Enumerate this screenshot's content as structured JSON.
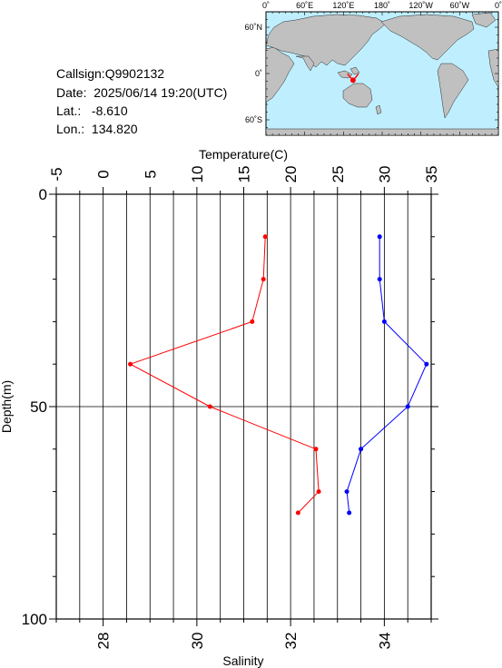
{
  "station": {
    "callsign_label": "Callsign:",
    "callsign": "Q9902132",
    "date_label": "Date:",
    "date": "2025/06/14 19:20(UTC)",
    "lat_label": "Lat.:",
    "lat": "-8.610",
    "lon_label": "Lon.:",
    "lon": "134.820"
  },
  "map": {
    "top_labels": [
      "0˚",
      "60˚E",
      "120˚E",
      "180˚",
      "120˚W",
      "60˚W",
      "0˚"
    ],
    "left_labels": [
      "60˚N",
      "0˚",
      "60˚S"
    ],
    "marker": {
      "lon": 134.82,
      "lat": -8.61
    },
    "colors": {
      "ocean": "#bfefff",
      "land": "#c0c0c0",
      "marker": "#ff0000"
    }
  },
  "chart_data": {
    "type": "line",
    "ylabel": "Depth(m)",
    "y_range": [
      0,
      100
    ],
    "y_ticks": [
      "0",
      "50",
      "100"
    ],
    "y_reversed": true,
    "temperature_axis": {
      "label": "Temperature(C)",
      "range": [
        -5,
        35
      ],
      "ticks": [
        "-5",
        "0",
        "5",
        "10",
        "15",
        "20",
        "25",
        "30",
        "35"
      ]
    },
    "salinity_axis": {
      "label": "Salinity",
      "range": [
        27,
        35
      ],
      "ticks": [
        "28",
        "30",
        "32",
        "34"
      ]
    },
    "series": [
      {
        "axis": "temperature",
        "color": "#ff0000",
        "points": [
          [
            17.3,
            10
          ],
          [
            17.1,
            20
          ],
          [
            15.9,
            30
          ],
          [
            2.9,
            40
          ],
          [
            11.4,
            50
          ],
          [
            22.7,
            60
          ],
          [
            23.0,
            70
          ],
          [
            20.8,
            75
          ]
        ]
      },
      {
        "axis": "salinity",
        "color": "#0000ff",
        "points": [
          [
            33.9,
            10
          ],
          [
            33.9,
            20
          ],
          [
            34.0,
            30
          ],
          [
            34.9,
            40
          ],
          [
            34.5,
            50
          ],
          [
            33.5,
            60
          ],
          [
            33.2,
            70
          ],
          [
            33.25,
            75
          ]
        ]
      }
    ],
    "grid": {
      "vertical": true,
      "horizontal_at": [
        50
      ]
    }
  }
}
